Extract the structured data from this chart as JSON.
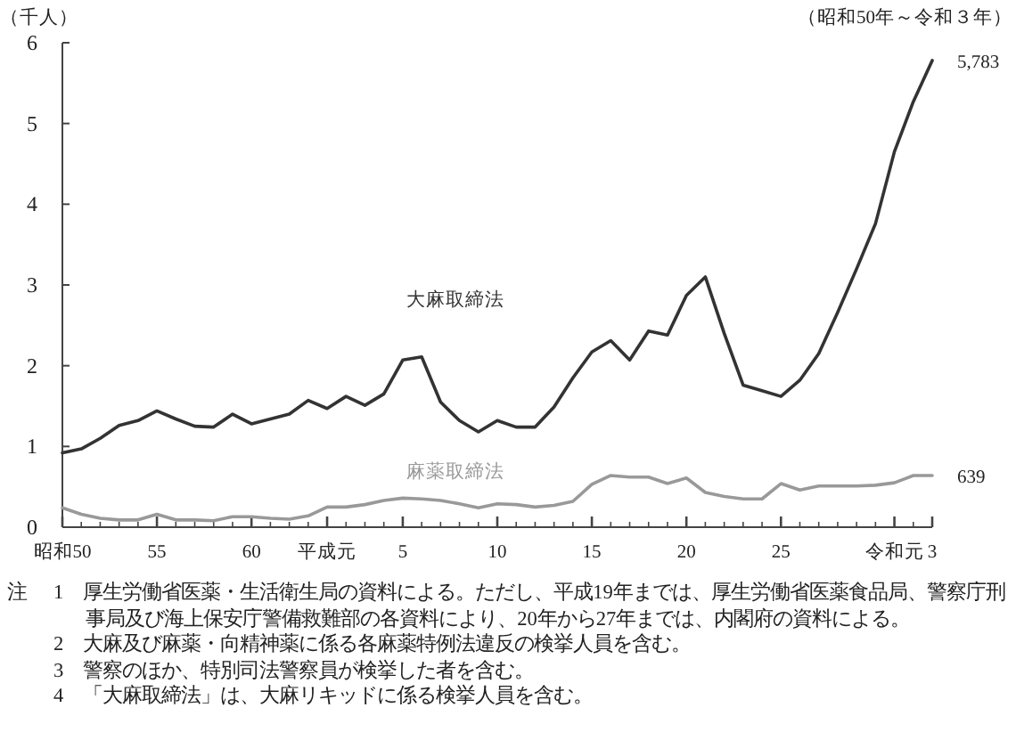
{
  "chart_data": {
    "type": "line",
    "ylabel": "（千人）",
    "subtitle": "（昭和50年～令和３年）",
    "categories": [
      "昭和50",
      null,
      null,
      null,
      null,
      "55",
      null,
      null,
      null,
      null,
      "60",
      null,
      null,
      null,
      "平成元",
      null,
      null,
      null,
      "5",
      null,
      null,
      null,
      null,
      "10",
      null,
      null,
      null,
      null,
      "15",
      null,
      null,
      null,
      null,
      "20",
      null,
      null,
      null,
      null,
      "25",
      null,
      null,
      null,
      null,
      null,
      "令和元",
      null,
      "3"
    ],
    "series": [
      {
        "name": "大麻取締法",
        "color": "#333333",
        "values": [
          0.92,
          0.97,
          1.1,
          1.26,
          1.32,
          1.44,
          1.34,
          1.25,
          1.24,
          1.4,
          1.28,
          1.34,
          1.4,
          1.57,
          1.47,
          1.62,
          1.51,
          1.65,
          2.07,
          2.11,
          1.55,
          1.32,
          1.18,
          1.32,
          1.24,
          1.24,
          1.49,
          1.85,
          2.17,
          2.31,
          2.07,
          2.43,
          2.38,
          2.87,
          3.1,
          2.4,
          1.76,
          1.69,
          1.62,
          1.82,
          2.15,
          2.66,
          3.2,
          3.76,
          4.65,
          5.27,
          5.78
        ]
      },
      {
        "name": "麻薬取締法",
        "color": "#999999",
        "values": [
          0.24,
          0.16,
          0.11,
          0.09,
          0.09,
          0.16,
          0.09,
          0.09,
          0.08,
          0.13,
          0.13,
          0.11,
          0.1,
          0.14,
          0.25,
          0.25,
          0.28,
          0.33,
          0.36,
          0.35,
          0.33,
          0.29,
          0.24,
          0.29,
          0.28,
          0.25,
          0.27,
          0.32,
          0.53,
          0.64,
          0.62,
          0.62,
          0.54,
          0.61,
          0.43,
          0.38,
          0.35,
          0.35,
          0.54,
          0.46,
          0.51,
          0.51,
          0.51,
          0.52,
          0.55,
          0.64,
          0.64
        ]
      }
    ],
    "ylim": [
      0,
      6
    ],
    "yticks": [
      0,
      1,
      2,
      3,
      4,
      5,
      6
    ],
    "grid": false,
    "legend": false,
    "marker": "none",
    "line_style": "solid",
    "annotations": [
      "5,783",
      "639",
      "注",
      "1　厚生労働省医薬・生活衛生局の資料による。ただし、平成19年までは、厚生労働省医薬食品局、警察庁刑事局及び海上保安庁警備救難部の各資料により、20年から27年までは、内閣府の資料による。",
      "2　大麻及び麻薬・向精神薬に係る各麻薬特例法違反の検挙人員を含む。",
      "3　警察のほか、特別司法警察員が検挙した者を含む。",
      "4　「大麻取締法」は、大麻リキッドに係る検挙人員を含む。"
    ]
  }
}
